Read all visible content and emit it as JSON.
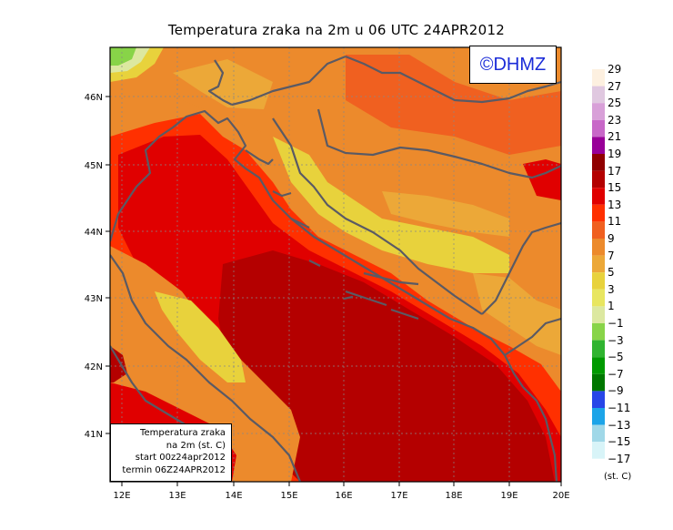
{
  "title": "Temperatura zraka na 2m u 06 UTC 24APR2012",
  "credit": "©DHMZ",
  "info_box": {
    "line1": "Temperatura zraka",
    "line2": "na 2m (st. C)",
    "line3": "start 00z24apr2012",
    "line4": "termin 06Z24APR2012"
  },
  "latitude_labels": [
    "46N",
    "45N",
    "44N",
    "43N",
    "42N",
    "41N"
  ],
  "longitude_labels": [
    "12E",
    "13E",
    "14E",
    "15E",
    "16E",
    "17E",
    "18E",
    "19E",
    "20E"
  ],
  "legend": {
    "unit": "(st. C)",
    "labels": [
      "29",
      "27",
      "25",
      "23",
      "21",
      "19",
      "17",
      "15",
      "13",
      "11",
      "9",
      "7",
      "5",
      "3",
      "1",
      "−1",
      "−3",
      "−5",
      "−7",
      "−9",
      "−11",
      "−13",
      "−15",
      "−17"
    ],
    "colors": [
      "#fdf0e0",
      "#e0c8e0",
      "#d8a0d8",
      "#c868c8",
      "#980098",
      "#900000",
      "#b40000",
      "#e00000",
      "#ff3000",
      "#f06020",
      "#ec8a2c",
      "#eca838",
      "#e8d23c",
      "#e8e660",
      "#dce8a0",
      "#88d448",
      "#30b430",
      "#009a00",
      "#007800",
      "#2846e8",
      "#1ca4e8",
      "#a0d8e8",
      "#d8f4f8",
      "#ffffff"
    ]
  }
}
